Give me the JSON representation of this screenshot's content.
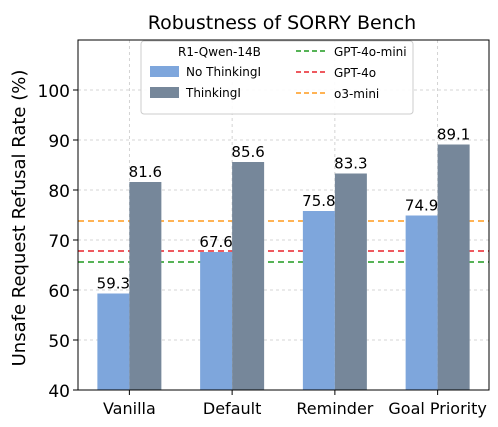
{
  "chart_data": {
    "type": "bar",
    "title": "Robustness of SORRY Bench",
    "xlabel": "",
    "ylabel": "Unsafe Request Refusal Rate (%)",
    "ylim": [
      40,
      110
    ],
    "yticks": [
      40,
      50,
      60,
      70,
      80,
      90,
      100
    ],
    "grid": true,
    "legend_position": "top-center",
    "categories": [
      "Vanilla",
      "Default",
      "Reminder",
      "Goal Priority"
    ],
    "legend_title": "R1-Qwen-14B",
    "series": [
      {
        "name": "No ThinkingI",
        "values": [
          59.3,
          67.6,
          75.8,
          74.9
        ],
        "color": "#7ea6dc"
      },
      {
        "name": "ThinkingI",
        "values": [
          81.6,
          85.6,
          83.3,
          89.1
        ],
        "color": "#76879a"
      }
    ],
    "reference_lines": [
      {
        "name": "GPT-4o-mini",
        "value": 65.6,
        "color": "#1f9a1f"
      },
      {
        "name": "GPT-4o",
        "value": 67.8,
        "color": "#e8222a"
      },
      {
        "name": "o3-mini",
        "value": 73.8,
        "color": "#ff9a1c"
      }
    ]
  }
}
